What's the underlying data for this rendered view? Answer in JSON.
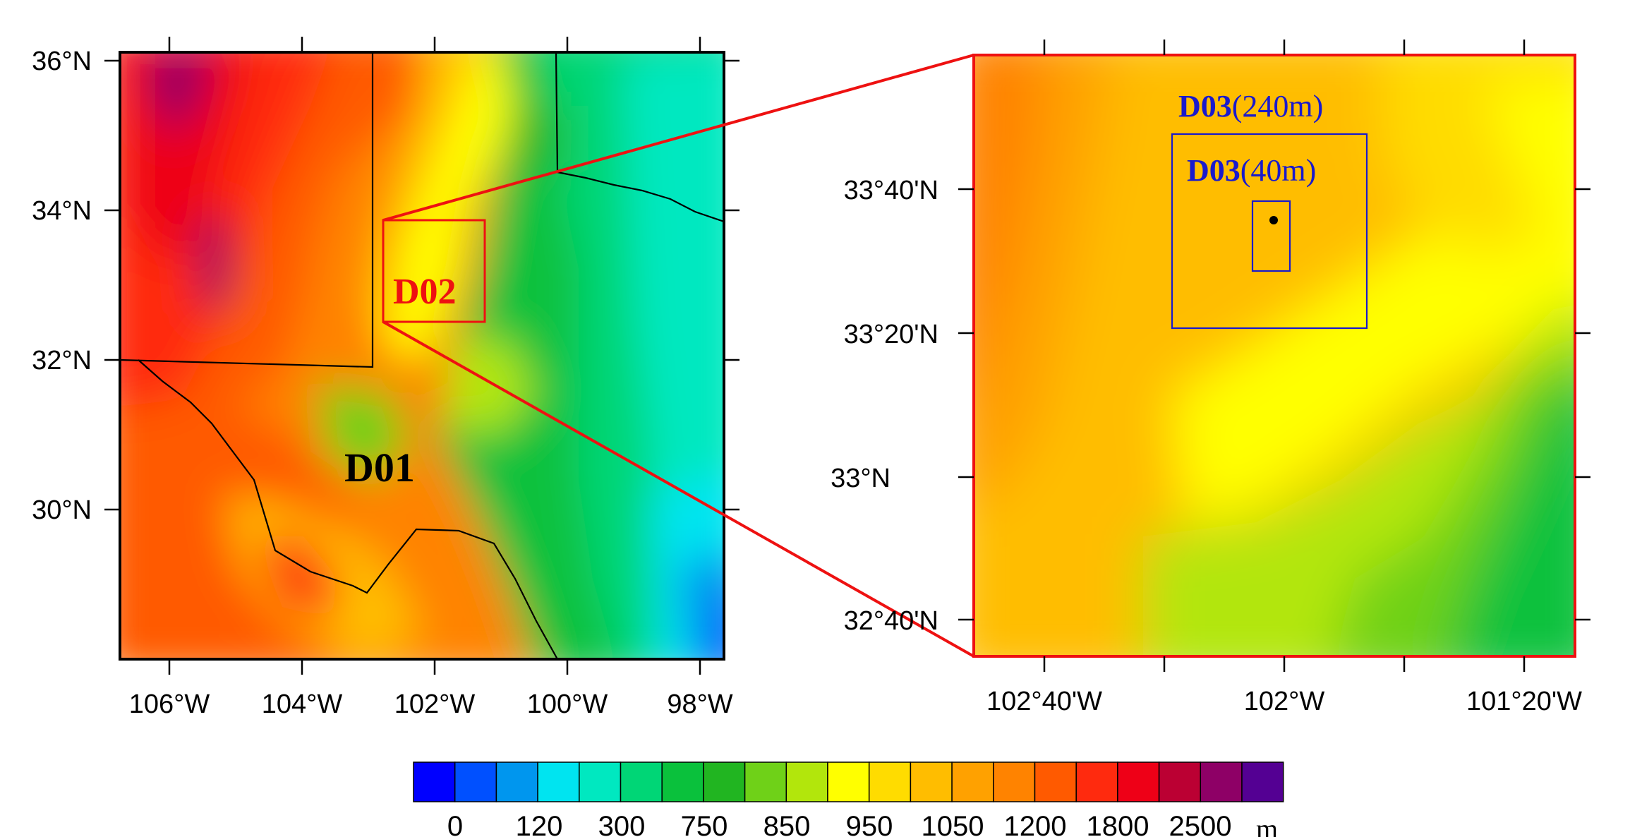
{
  "left_map": {
    "lat_labels": [
      "36°N",
      "34°N",
      "32°N",
      "30°N"
    ],
    "lon_labels": [
      "106°W",
      "104°W",
      "102°W",
      "100°W",
      "98°W"
    ],
    "domain_outer_label": "D01",
    "domain_inner_label": "D02"
  },
  "right_map": {
    "lat_labels": [
      "33°40'N",
      "33°20'N",
      "33°N",
      "32°40'N"
    ],
    "lon_labels": [
      "102°40'W",
      "102°W",
      "101°20'W"
    ],
    "d03a_bold": "D03",
    "d03a_res": "(240m)",
    "d03b_bold": "D03",
    "d03b_res": "(40m)"
  },
  "colorbar": {
    "labels": [
      "0",
      "120",
      "300",
      "750",
      "850",
      "950",
      "1050",
      "1200",
      "1800",
      "2500"
    ],
    "unit": "m",
    "colors": [
      "#0000ff",
      "#0050ff",
      "#0096ee",
      "#00e4f0",
      "#00e8c0",
      "#00d676",
      "#0ac13c",
      "#21b521",
      "#6fd118",
      "#b2e60c",
      "#ffff00",
      "#ffdc00",
      "#ffbd00",
      "#ffa100",
      "#ff8300",
      "#ff5a00",
      "#ff2a0e",
      "#ee0017",
      "#bb0033",
      "#8e0066",
      "#540093"
    ]
  },
  "colors": {
    "frame_left": "#000000",
    "frame_right": "#ee1111",
    "connector": "#ee1111",
    "d02_label": "#ee1111",
    "d03_label": "#1a1acc"
  }
}
